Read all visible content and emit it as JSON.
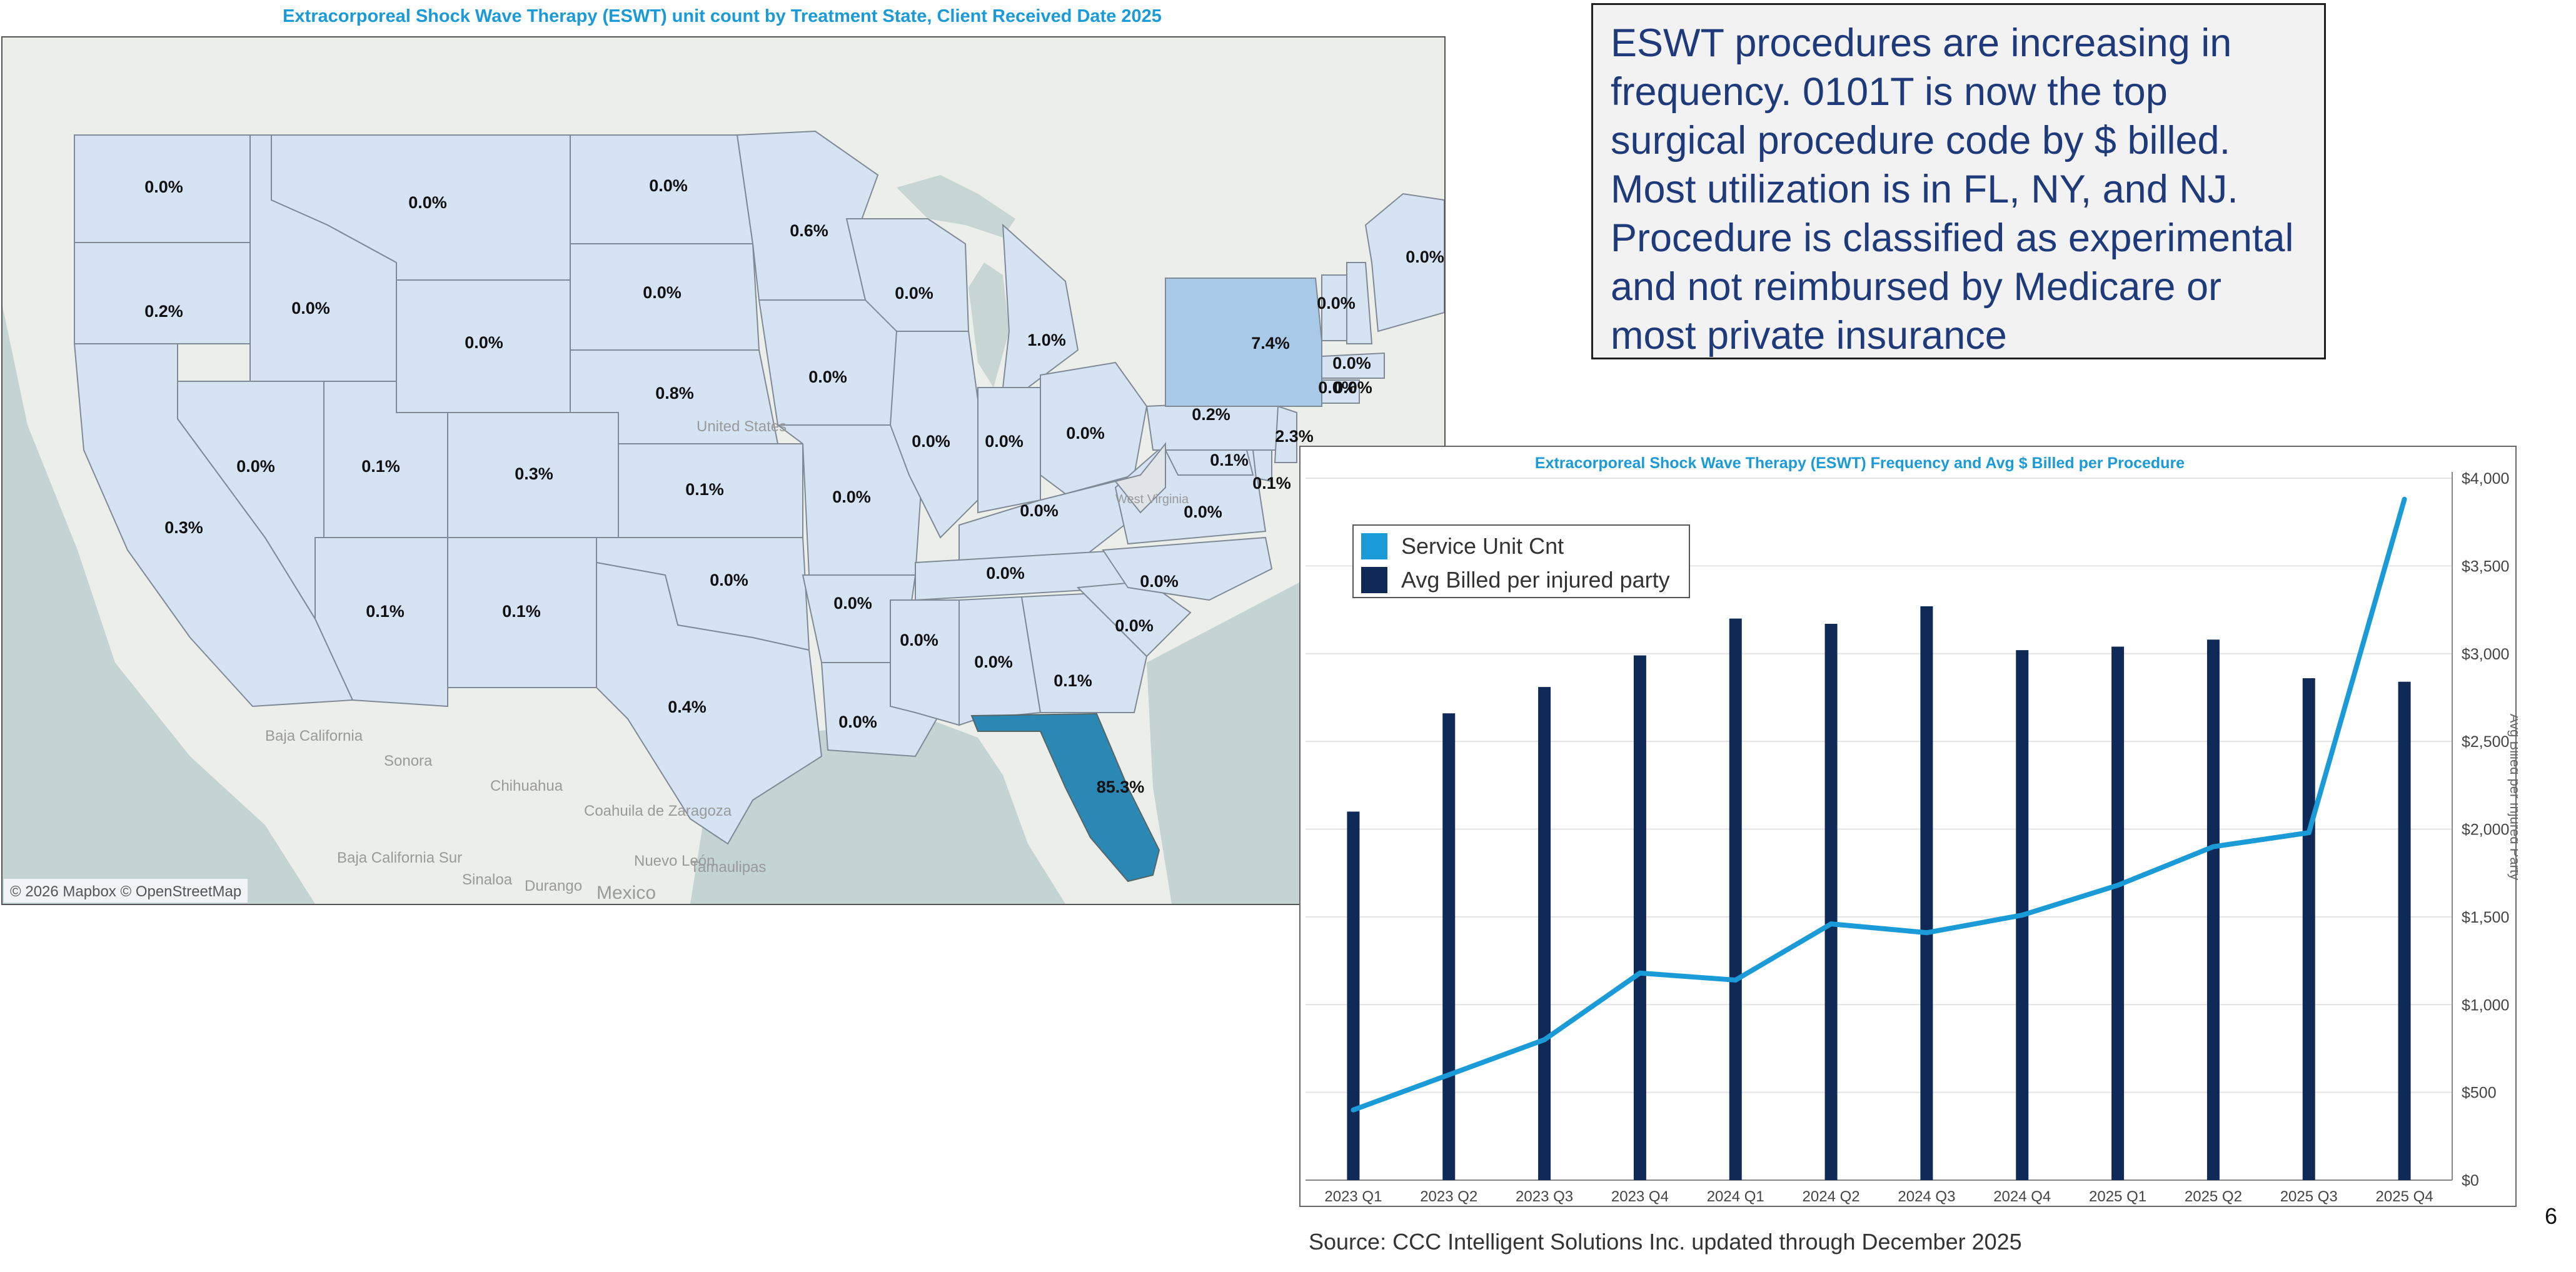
{
  "page_number": "6",
  "map": {
    "title": "Extracorporeal Shock Wave Therapy (ESWT) unit count by Treatment State, Client Received Date 2025",
    "attribution": "© 2026 Mapbox © OpenStreetMap",
    "basemap_labels": [
      "United States",
      "Baja California",
      "Sonora",
      "Chihuahua",
      "Coahuila de Zaragoza",
      "Nuevo León",
      "Baja California Sur",
      "Sinaloa",
      "Durango",
      "Tamaulipas",
      "Mexico",
      "West Virginia"
    ],
    "states": [
      {
        "state": "WA",
        "value": "0.0%"
      },
      {
        "state": "OR",
        "value": "0.2%"
      },
      {
        "state": "CA",
        "value": "0.3%"
      },
      {
        "state": "ID",
        "value": "0.0%"
      },
      {
        "state": "NV",
        "value": "0.0%"
      },
      {
        "state": "MT",
        "value": "0.0%"
      },
      {
        "state": "WY",
        "value": "0.0%"
      },
      {
        "state": "UT",
        "value": "0.1%"
      },
      {
        "state": "AZ",
        "value": "0.1%"
      },
      {
        "state": "CO",
        "value": "0.3%"
      },
      {
        "state": "NM",
        "value": "0.1%"
      },
      {
        "state": "ND",
        "value": "0.0%"
      },
      {
        "state": "SD",
        "value": "0.0%"
      },
      {
        "state": "NE",
        "value": "0.8%"
      },
      {
        "state": "KS",
        "value": "0.1%"
      },
      {
        "state": "OK",
        "value": "0.0%"
      },
      {
        "state": "TX",
        "value": "0.4%"
      },
      {
        "state": "MN",
        "value": "0.6%"
      },
      {
        "state": "IA",
        "value": "0.0%"
      },
      {
        "state": "MO",
        "value": "0.0%"
      },
      {
        "state": "AR",
        "value": "0.0%"
      },
      {
        "state": "LA",
        "value": "0.0%"
      },
      {
        "state": "WI",
        "value": "0.0%"
      },
      {
        "state": "IL",
        "value": "0.0%"
      },
      {
        "state": "MI",
        "value": "1.0%"
      },
      {
        "state": "IN",
        "value": "0.0%"
      },
      {
        "state": "OH",
        "value": "0.0%"
      },
      {
        "state": "KY",
        "value": "0.0%"
      },
      {
        "state": "TN",
        "value": "0.0%"
      },
      {
        "state": "MS",
        "value": "0.0%"
      },
      {
        "state": "AL",
        "value": "0.0%"
      },
      {
        "state": "GA",
        "value": "0.1%"
      },
      {
        "state": "FL",
        "value": "85.3%"
      },
      {
        "state": "SC",
        "value": "0.0%"
      },
      {
        "state": "NC",
        "value": "0.0%"
      },
      {
        "state": "VA",
        "value": "0.0%"
      },
      {
        "state": "MD",
        "value": "0.1%"
      },
      {
        "state": "DE",
        "value": "0.1%"
      },
      {
        "state": "PA",
        "value": "0.2%"
      },
      {
        "state": "NJ",
        "value": "2.3%"
      },
      {
        "state": "NY",
        "value": "7.4%"
      },
      {
        "state": "VT",
        "value": "0.0%"
      },
      {
        "state": "NH",
        "value": "0.0%"
      },
      {
        "state": "MA",
        "value": "0.0%"
      },
      {
        "state": "CT",
        "value": "0.0%"
      },
      {
        "state": "ME",
        "value": "0.0%"
      }
    ]
  },
  "callout": {
    "text": "ESWT procedures are increasing in frequency.  0101T is now the top surgical procedure code by $ billed. Most utilization is in FL, NY, and NJ. Procedure is classified as experimental and not reimbursed by Medicare or most private insurance"
  },
  "source": "Source: CCC Intelligent Solutions Inc. updated through December 2025",
  "colors": {
    "title_blue": "#1a9ad6",
    "navy": "#0f2a56",
    "line_blue": "#1a9ad6",
    "state_light": "#d5e3f3",
    "state_ny": "#a9c9e8",
    "state_fl": "#2b87b4",
    "callout_text": "#1f3a7a"
  },
  "chart_data": {
    "type": "bar+line",
    "title": "Extracorporeal Shock Wave Therapy (ESWT) Frequency and Avg $ Billed per Procedure",
    "categories": [
      "2023 Q1",
      "2023 Q2",
      "2023 Q3",
      "2023 Q4",
      "2024 Q1",
      "2024 Q2",
      "2024 Q3",
      "2024 Q4",
      "2025 Q1",
      "2025 Q2",
      "2025 Q3",
      "2025 Q4"
    ],
    "series": [
      {
        "name": "Avg Billed per injured party",
        "type": "bar",
        "axis": "right",
        "values": [
          2100,
          2660,
          2810,
          2990,
          3200,
          3170,
          3270,
          3020,
          3040,
          3080,
          2860,
          2840
        ]
      },
      {
        "name": "Service Unit Cnt",
        "type": "line",
        "axis": "left",
        "values": [
          400,
          600,
          800,
          1180,
          1140,
          1460,
          1410,
          1510,
          1680,
          1900,
          1980,
          3880
        ]
      }
    ],
    "y_right": {
      "label": "Avg Billed per Injured Party",
      "range": [
        0,
        4000
      ],
      "ticks": [
        "$0",
        "$500",
        "$1,000",
        "$1,500",
        "$2,000",
        "$2,500",
        "$3,000",
        "$3,500",
        "$4,000"
      ]
    },
    "legend": [
      "Service Unit Cnt",
      "Avg Billed per injured party"
    ],
    "legend_position": "top-left"
  }
}
